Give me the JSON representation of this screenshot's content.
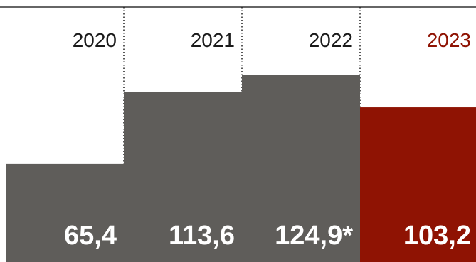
{
  "chart_data": {
    "type": "bar",
    "categories": [
      "2020",
      "2021",
      "2022",
      "2023"
    ],
    "values": [
      65.4,
      113.6,
      124.9,
      103.2
    ],
    "value_labels": [
      "65,4",
      "113,6",
      "124,9*",
      "103,2"
    ],
    "title": "",
    "xlabel": "",
    "ylabel": "",
    "ylim": [
      0,
      170
    ],
    "grid": false,
    "legend": "none",
    "colors": {
      "default_bar": "#5f5d5a",
      "highlight_bar": "#8f1303",
      "default_year_text": "#1a1a1a",
      "highlight_year_text": "#8f1303",
      "value_text": "#ffffff",
      "axis_line": "#333333",
      "separator": "#222222"
    },
    "highlight_index": 3
  }
}
